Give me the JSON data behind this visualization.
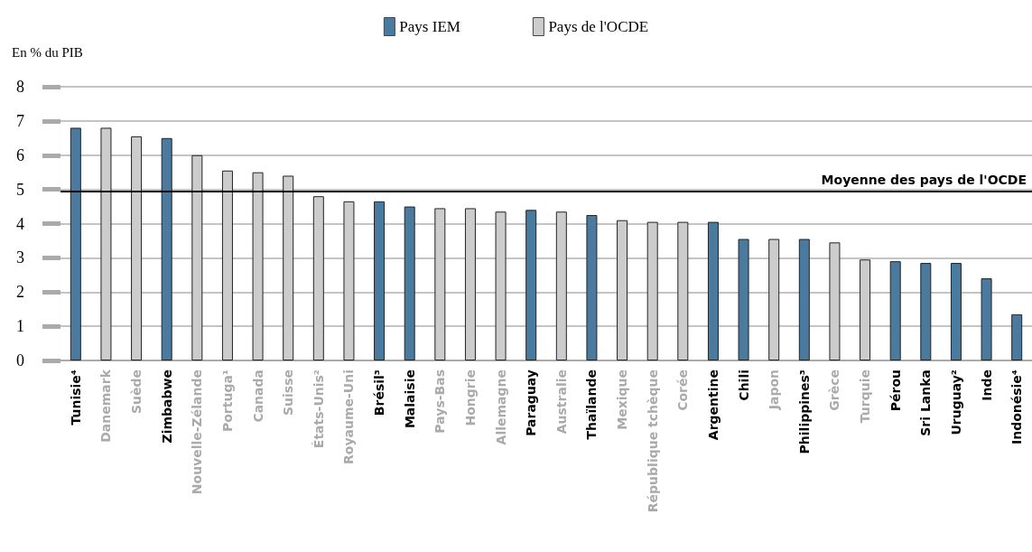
{
  "chart_data": {
    "type": "bar",
    "ylabel": "En % du PIB",
    "legend": "top",
    "categories": [
      "Tunisie⁴",
      "Danemark",
      "Suède",
      "Zimbabwe",
      "Nouvelle-Zélande",
      "Portuga¹",
      "Canada",
      "Suisse",
      "États-Unis²",
      "Royaume-Uni",
      "Brésil³",
      "Malaisie",
      "Pays-Bas",
      "Hongrie",
      "Allemagne",
      "Paraguay",
      "Australie",
      "Thaïlande",
      "Mexique",
      "République tchèque",
      "Corée",
      "Argentine",
      "Chili",
      "Japon",
      "Philippines³",
      "Grèce",
      "Turquie",
      "Pérou",
      "Sri Lanka",
      "Uruguay²",
      "Inde",
      "Indonésie⁴"
    ],
    "series": [
      {
        "name": "Pays IEM",
        "color": "#4a7a9e",
        "values": [
          6.8,
          null,
          null,
          6.5,
          null,
          null,
          null,
          null,
          null,
          null,
          4.65,
          4.5,
          null,
          null,
          null,
          4.4,
          null,
          4.25,
          null,
          null,
          null,
          4.05,
          3.55,
          null,
          3.55,
          null,
          null,
          2.9,
          2.85,
          2.85,
          2.4,
          1.35
        ]
      },
      {
        "name": "Pays de l'OCDE",
        "color": "#cccccc",
        "values": [
          null,
          6.8,
          6.55,
          null,
          6.0,
          5.55,
          5.5,
          5.4,
          4.8,
          4.65,
          null,
          null,
          4.45,
          4.45,
          4.35,
          null,
          4.35,
          null,
          4.1,
          4.05,
          4.05,
          null,
          null,
          3.55,
          null,
          3.45,
          2.95,
          null,
          null,
          null,
          null,
          null
        ]
      }
    ],
    "ylim": [
      0,
      8
    ],
    "yticks": [
      0,
      1,
      2,
      3,
      4,
      5,
      6,
      7,
      8
    ],
    "grid": "y",
    "ref_lines": [
      {
        "axis": "y",
        "value": 4.95,
        "label": "Moyenne des pays de l'OCDE",
        "color": "#000000"
      }
    ]
  }
}
